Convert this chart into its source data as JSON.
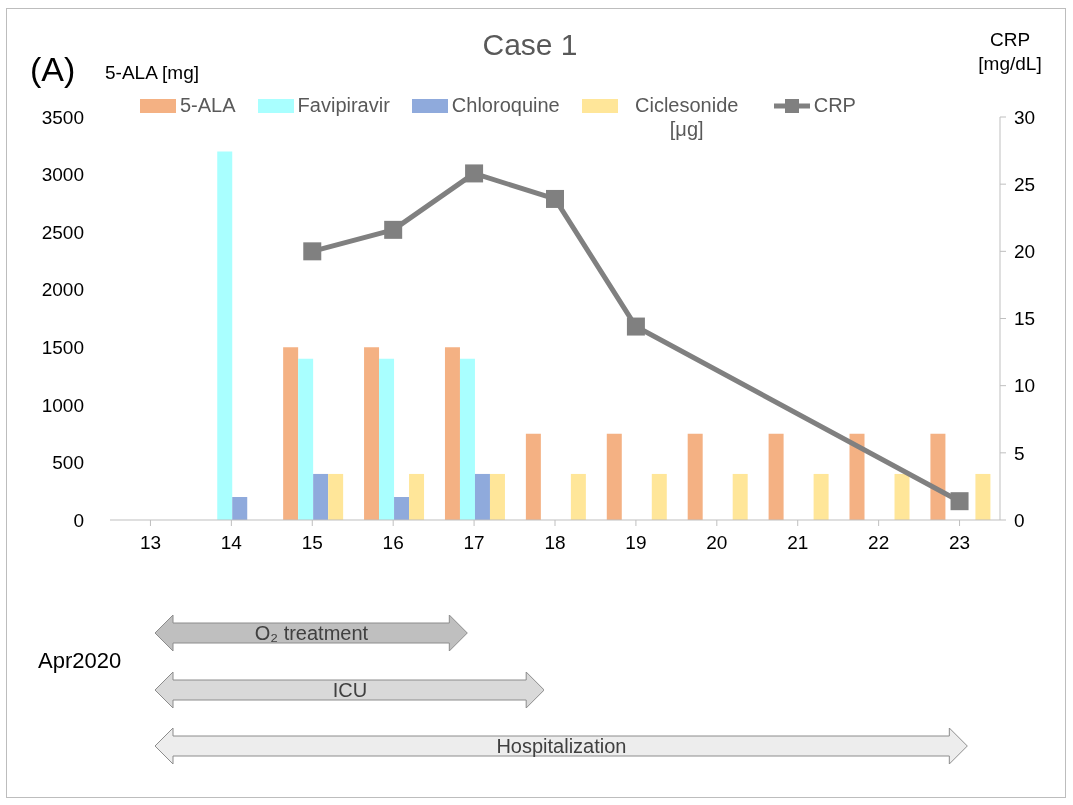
{
  "chart_data": {
    "type": "bar",
    "title": "Case 1",
    "ylabel": "5-ALA [mg]",
    "y2label": "CRP [mg/dL]",
    "categories": [
      "13",
      "14",
      "15",
      "16",
      "17",
      "18",
      "19",
      "20",
      "21",
      "22",
      "23"
    ],
    "series": [
      {
        "name": "5-ALA",
        "color": "#f4b183",
        "values": [
          null,
          null,
          1500,
          1500,
          1500,
          750,
          750,
          750,
          750,
          750,
          750
        ]
      },
      {
        "name": "Favipiravir",
        "color": "#a9ffff",
        "values": [
          null,
          3200,
          1400,
          1400,
          1400,
          null,
          null,
          null,
          null,
          null,
          null
        ]
      },
      {
        "name": "Chloroquine",
        "color": "#8faadc",
        "values": [
          null,
          200,
          400,
          200,
          400,
          null,
          null,
          null,
          null,
          null,
          null
        ]
      },
      {
        "name": "Ciclesonide [μg]",
        "color": "#ffe699",
        "values": [
          null,
          null,
          400,
          400,
          400,
          400,
          400,
          400,
          400,
          400,
          400
        ]
      },
      {
        "name": "CRP",
        "type": "line",
        "axis": "y2",
        "color": "#808080",
        "marker": "square",
        "values": [
          null,
          null,
          20,
          21.6,
          25.8,
          23.9,
          14.4,
          null,
          null,
          null,
          1.4
        ]
      }
    ],
    "ylim": [
      0,
      3500
    ],
    "yticks": [
      0,
      500,
      1000,
      1500,
      2000,
      2500,
      3000,
      3500
    ],
    "y2lim": [
      0,
      30
    ],
    "y2ticks": [
      0,
      5,
      10,
      15,
      20,
      25,
      30
    ],
    "legend": "top",
    "annotations": [
      "(A)",
      "Apr2020",
      "O₂ treatment",
      "ICU",
      "Hospitalization"
    ]
  }
}
